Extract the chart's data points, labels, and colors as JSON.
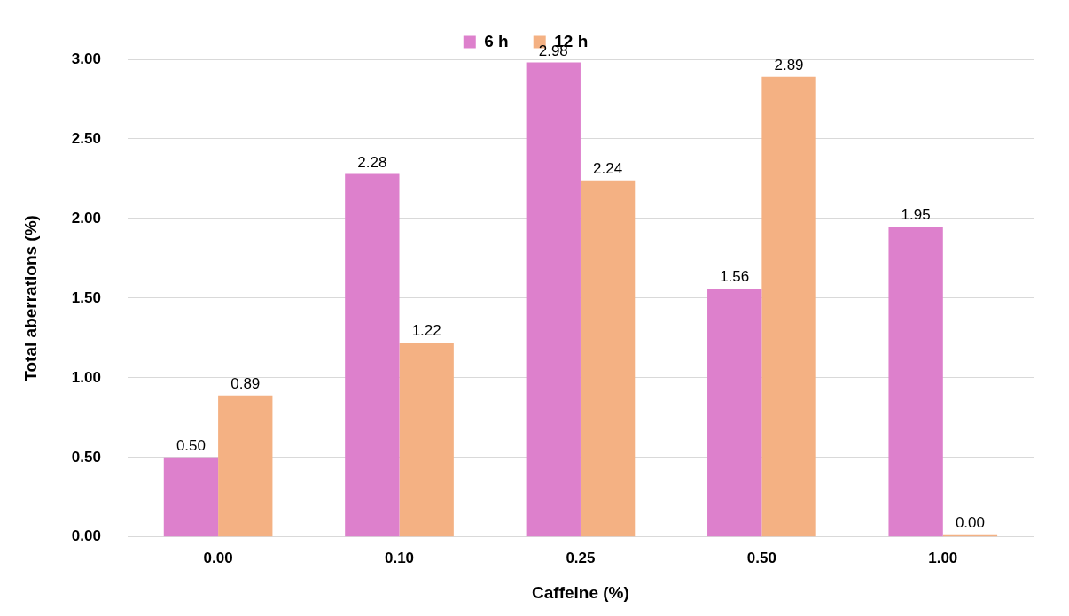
{
  "chart_data": {
    "type": "bar",
    "xlabel": "Caffeine (%)",
    "ylabel": "Total aberrations (%)",
    "categories": [
      "0.00",
      "0.10",
      "0.25",
      "0.50",
      "1.00"
    ],
    "series": [
      {
        "name": "6 h",
        "color": "#dd80cc",
        "values": [
          0.5,
          2.28,
          2.98,
          1.56,
          1.95
        ],
        "value_labels": [
          "0.50",
          "2.28",
          "2.98",
          "1.56",
          "1.95"
        ]
      },
      {
        "name": "12 h",
        "color": "#f4b183",
        "values": [
          0.89,
          1.22,
          2.24,
          2.89,
          0.0
        ],
        "value_labels": [
          "0.89",
          "1.22",
          "2.24",
          "2.89",
          "0.00"
        ]
      }
    ],
    "ylim": [
      0,
      3
    ],
    "yticks": [
      {
        "value": 0,
        "label": "0.00"
      },
      {
        "value": 0.5,
        "label": "0.50"
      },
      {
        "value": 1,
        "label": "1.00"
      },
      {
        "value": 1.5,
        "label": "1.50"
      },
      {
        "value": 2,
        "label": "2.00"
      },
      {
        "value": 2.5,
        "label": "2.50"
      },
      {
        "value": 3,
        "label": "3.00"
      }
    ],
    "grid": "y",
    "legend": "top"
  }
}
